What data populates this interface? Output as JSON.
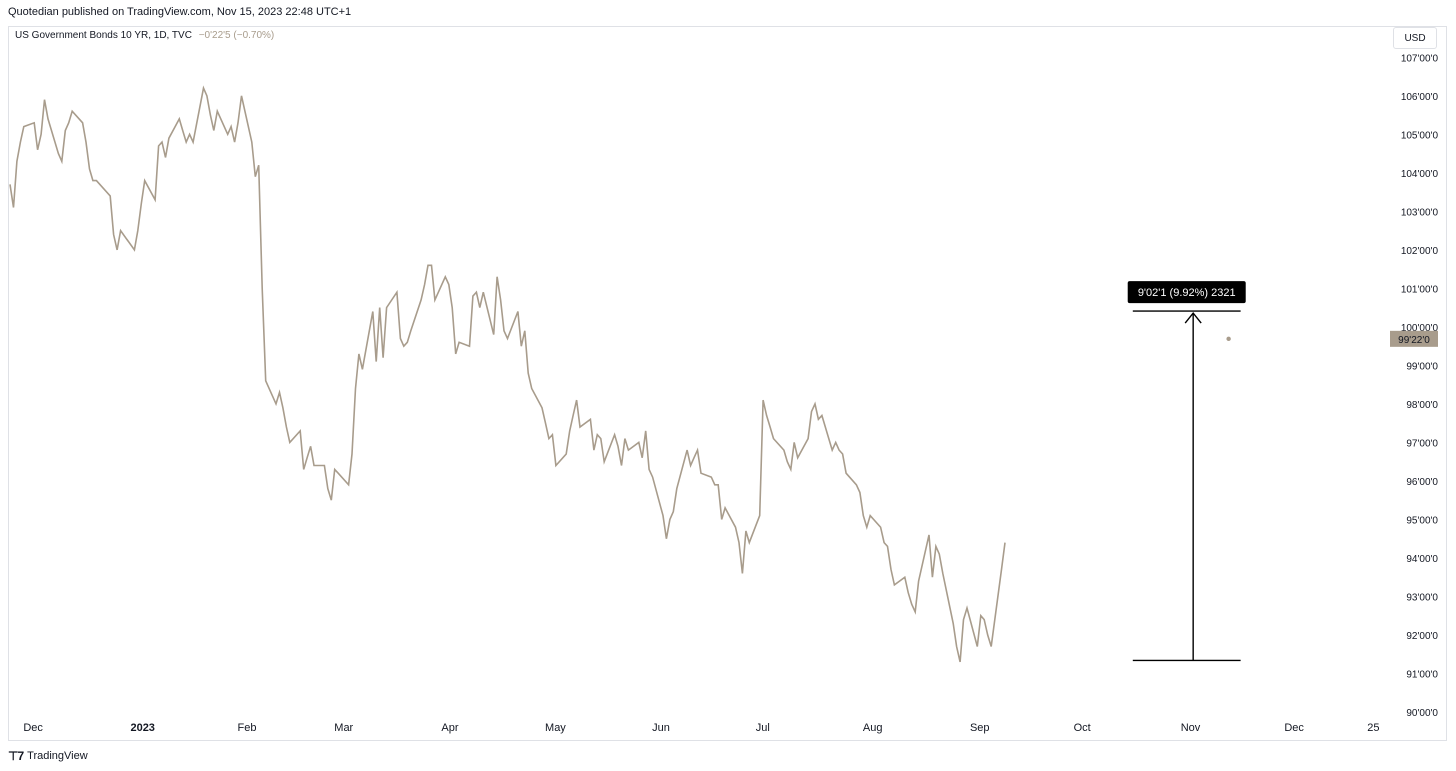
{
  "header": {
    "published": "Quotedian published on TradingView.com, Nov 15, 2023 22:48 UTC+1"
  },
  "legend": {
    "symbol": "US Government Bonds 10 YR, 1D, TVC",
    "change": "−0'22'5 (−0.70%)"
  },
  "currency": "USD",
  "footer": {
    "brand": "TradingView"
  },
  "colors": {
    "line": "#a89c8c",
    "price_label_bg": "#a89c8c",
    "annotation": "#000000"
  },
  "chart_data": {
    "type": "line",
    "y_unit": "price (points'32nds'tenth)",
    "ylim": [
      90,
      107.45
    ],
    "y_ticks": [
      "107'00'0",
      "106'00'0",
      "105'00'0",
      "104'00'0",
      "103'00'0",
      "102'00'0",
      "101'00'0",
      "100'00'0",
      "99'00'0",
      "98'00'0",
      "97'00'0",
      "96'00'0",
      "95'00'0",
      "94'00'0",
      "93'00'0",
      "92'00'0",
      "91'00'0",
      "90'00'0"
    ],
    "x_ticks": [
      "Dec",
      "2023",
      "Feb",
      "Mar",
      "Apr",
      "May",
      "Jun",
      "Jul",
      "Aug",
      "Sep",
      "Oct",
      "Nov",
      "Dec",
      "25"
    ],
    "x_tick_dates": [
      "2022-12-01",
      "2023-01-01",
      "2023-02-01",
      "2023-03-01",
      "2023-04-01",
      "2023-05-01",
      "2023-06-01",
      "2023-07-01",
      "2023-08-01",
      "2023-09-01",
      "2023-10-01",
      "2023-11-01",
      "2023-12-01",
      "2023-12-25"
    ],
    "x_range": [
      "2022-11-28",
      "2023-12-31"
    ],
    "last_price_label": "99'22'0",
    "last_price": 99.69,
    "annotation": {
      "label": "9'02'1 (9.92%) 2321",
      "from_date": "2023-10-19",
      "to_date": "2023-11-14",
      "low": 91.34,
      "high": 100.41,
      "arrow_date": "2023-11-02"
    },
    "series": [
      {
        "points": [
          [
            "2022-11-28",
            103.7
          ],
          [
            "2022-11-29",
            103.1
          ],
          [
            "2022-11-30",
            104.3
          ],
          [
            "2022-12-01",
            104.8
          ],
          [
            "2022-12-02",
            105.2
          ],
          [
            "2022-12-05",
            105.3
          ],
          [
            "2022-12-06",
            104.6
          ],
          [
            "2022-12-07",
            105.0
          ],
          [
            "2022-12-08",
            105.9
          ],
          [
            "2022-12-09",
            105.4
          ],
          [
            "2022-12-12",
            104.5
          ],
          [
            "2022-12-13",
            104.3
          ],
          [
            "2022-12-14",
            105.1
          ],
          [
            "2022-12-15",
            105.3
          ],
          [
            "2022-12-16",
            105.6
          ],
          [
            "2022-12-19",
            105.3
          ],
          [
            "2022-12-20",
            104.8
          ],
          [
            "2022-12-21",
            104.1
          ],
          [
            "2022-12-22",
            103.8
          ],
          [
            "2022-12-23",
            103.8
          ],
          [
            "2022-12-27",
            103.4
          ],
          [
            "2022-12-28",
            102.4
          ],
          [
            "2022-12-29",
            102.0
          ],
          [
            "2022-12-30",
            102.5
          ],
          [
            "2023-01-03",
            102.0
          ],
          [
            "2023-01-04",
            102.5
          ],
          [
            "2023-01-05",
            103.2
          ],
          [
            "2023-01-06",
            103.8
          ],
          [
            "2023-01-09",
            103.3
          ],
          [
            "2023-01-10",
            104.7
          ],
          [
            "2023-01-11",
            104.8
          ],
          [
            "2023-01-12",
            104.4
          ],
          [
            "2023-01-13",
            104.9
          ],
          [
            "2023-01-16",
            105.4
          ],
          [
            "2023-01-17",
            105.1
          ],
          [
            "2023-01-18",
            104.8
          ],
          [
            "2023-01-19",
            105.0
          ],
          [
            "2023-01-20",
            104.8
          ],
          [
            "2023-01-23",
            106.2
          ],
          [
            "2023-01-24",
            106.0
          ],
          [
            "2023-01-25",
            105.5
          ],
          [
            "2023-01-26",
            105.1
          ],
          [
            "2023-01-27",
            105.6
          ],
          [
            "2023-01-30",
            105.0
          ],
          [
            "2023-01-31",
            105.2
          ],
          [
            "2023-02-01",
            104.8
          ],
          [
            "2023-02-02",
            105.3
          ],
          [
            "2023-02-03",
            106.0
          ],
          [
            "2023-02-06",
            104.8
          ],
          [
            "2023-02-07",
            103.9
          ],
          [
            "2023-02-08",
            104.2
          ],
          [
            "2023-02-09",
            101.0
          ],
          [
            "2023-02-10",
            98.6
          ],
          [
            "2023-02-13",
            98.0
          ],
          [
            "2023-02-14",
            98.3
          ],
          [
            "2023-02-15",
            97.9
          ],
          [
            "2023-02-16",
            97.4
          ],
          [
            "2023-02-17",
            97.0
          ],
          [
            "2023-02-20",
            97.3
          ],
          [
            "2023-02-21",
            96.3
          ],
          [
            "2023-02-22",
            96.6
          ],
          [
            "2023-02-23",
            96.9
          ],
          [
            "2023-02-24",
            96.4
          ],
          [
            "2023-02-27",
            96.4
          ],
          [
            "2023-02-28",
            95.8
          ],
          [
            "2023-03-01",
            95.5
          ],
          [
            "2023-03-02",
            96.3
          ],
          [
            "2023-03-03",
            96.2
          ],
          [
            "2023-03-06",
            95.9
          ],
          [
            "2023-03-07",
            96.7
          ],
          [
            "2023-03-08",
            98.4
          ],
          [
            "2023-03-09",
            99.3
          ],
          [
            "2023-03-10",
            98.9
          ],
          [
            "2023-03-13",
            100.4
          ],
          [
            "2023-03-14",
            99.1
          ],
          [
            "2023-03-15",
            100.5
          ],
          [
            "2023-03-16",
            99.2
          ],
          [
            "2023-03-17",
            100.5
          ],
          [
            "2023-03-20",
            100.9
          ],
          [
            "2023-03-21",
            99.7
          ],
          [
            "2023-03-22",
            99.5
          ],
          [
            "2023-03-23",
            99.6
          ],
          [
            "2023-03-24",
            99.9
          ],
          [
            "2023-03-27",
            100.7
          ],
          [
            "2023-03-28",
            101.1
          ],
          [
            "2023-03-29",
            101.6
          ],
          [
            "2023-03-30",
            101.6
          ],
          [
            "2023-03-31",
            100.7
          ],
          [
            "2023-04-03",
            101.3
          ],
          [
            "2023-04-04",
            101.1
          ],
          [
            "2023-04-05",
            100.5
          ],
          [
            "2023-04-06",
            99.3
          ],
          [
            "2023-04-07",
            99.6
          ],
          [
            "2023-04-10",
            99.5
          ],
          [
            "2023-04-11",
            100.8
          ],
          [
            "2023-04-12",
            100.9
          ],
          [
            "2023-04-13",
            100.5
          ],
          [
            "2023-04-14",
            100.9
          ],
          [
            "2023-04-17",
            99.8
          ],
          [
            "2023-04-18",
            101.3
          ],
          [
            "2023-04-19",
            100.7
          ],
          [
            "2023-04-20",
            99.9
          ],
          [
            "2023-04-21",
            99.7
          ],
          [
            "2023-04-24",
            100.4
          ],
          [
            "2023-04-25",
            99.5
          ],
          [
            "2023-04-26",
            99.9
          ],
          [
            "2023-04-27",
            98.8
          ],
          [
            "2023-04-28",
            98.4
          ],
          [
            "2023-05-01",
            97.9
          ],
          [
            "2023-05-02",
            97.5
          ],
          [
            "2023-05-03",
            97.1
          ],
          [
            "2023-05-04",
            97.2
          ],
          [
            "2023-05-05",
            96.4
          ],
          [
            "2023-05-08",
            96.7
          ],
          [
            "2023-05-09",
            97.3
          ],
          [
            "2023-05-10",
            97.7
          ],
          [
            "2023-05-11",
            98.1
          ],
          [
            "2023-05-12",
            97.4
          ],
          [
            "2023-05-15",
            97.6
          ],
          [
            "2023-05-16",
            96.8
          ],
          [
            "2023-05-17",
            97.2
          ],
          [
            "2023-05-18",
            97.1
          ],
          [
            "2023-05-19",
            96.5
          ],
          [
            "2023-05-22",
            97.2
          ],
          [
            "2023-05-23",
            96.9
          ],
          [
            "2023-05-24",
            96.4
          ],
          [
            "2023-05-25",
            97.1
          ],
          [
            "2023-05-26",
            96.8
          ],
          [
            "2023-05-29",
            97.0
          ],
          [
            "2023-05-30",
            96.6
          ],
          [
            "2023-05-31",
            97.3
          ],
          [
            "2023-06-01",
            96.3
          ],
          [
            "2023-06-02",
            96.1
          ],
          [
            "2023-06-05",
            95.1
          ],
          [
            "2023-06-06",
            94.5
          ],
          [
            "2023-06-07",
            95.0
          ],
          [
            "2023-06-08",
            95.2
          ],
          [
            "2023-06-09",
            95.8
          ],
          [
            "2023-06-12",
            96.8
          ],
          [
            "2023-06-13",
            96.4
          ],
          [
            "2023-06-14",
            96.6
          ],
          [
            "2023-06-15",
            96.8
          ],
          [
            "2023-06-16",
            96.2
          ],
          [
            "2023-06-19",
            96.1
          ],
          [
            "2023-06-20",
            95.9
          ],
          [
            "2023-06-21",
            95.9
          ],
          [
            "2023-06-22",
            95.0
          ],
          [
            "2023-06-23",
            95.3
          ],
          [
            "2023-06-26",
            94.8
          ],
          [
            "2023-06-27",
            94.4
          ],
          [
            "2023-06-28",
            93.6
          ],
          [
            "2023-06-29",
            94.7
          ],
          [
            "2023-06-30",
            94.4
          ],
          [
            "2023-07-03",
            95.1
          ],
          [
            "2023-07-04",
            98.1
          ],
          [
            "2023-07-05",
            97.7
          ],
          [
            "2023-07-06",
            97.4
          ],
          [
            "2023-07-07",
            97.1
          ],
          [
            "2023-07-10",
            96.8
          ],
          [
            "2023-07-11",
            96.5
          ],
          [
            "2023-07-12",
            96.3
          ],
          [
            "2023-07-13",
            97.0
          ],
          [
            "2023-07-14",
            96.6
          ],
          [
            "2023-07-17",
            97.1
          ],
          [
            "2023-07-18",
            97.8
          ],
          [
            "2023-07-19",
            98.0
          ],
          [
            "2023-07-20",
            97.6
          ],
          [
            "2023-07-21",
            97.7
          ],
          [
            "2023-07-24",
            96.8
          ],
          [
            "2023-07-25",
            97.0
          ],
          [
            "2023-07-26",
            96.8
          ],
          [
            "2023-07-27",
            96.7
          ],
          [
            "2023-07-28",
            96.2
          ],
          [
            "2023-07-31",
            95.9
          ],
          [
            "2023-08-01",
            95.7
          ],
          [
            "2023-08-02",
            95.1
          ],
          [
            "2023-08-03",
            94.8
          ],
          [
            "2023-08-04",
            95.1
          ],
          [
            "2023-08-07",
            94.8
          ],
          [
            "2023-08-08",
            94.4
          ],
          [
            "2023-08-09",
            94.3
          ],
          [
            "2023-08-10",
            93.7
          ],
          [
            "2023-08-11",
            93.3
          ],
          [
            "2023-08-14",
            93.5
          ],
          [
            "2023-08-15",
            93.1
          ],
          [
            "2023-08-16",
            92.8
          ],
          [
            "2023-08-17",
            92.6
          ],
          [
            "2023-08-18",
            93.4
          ],
          [
            "2023-08-21",
            94.6
          ],
          [
            "2023-08-22",
            93.5
          ],
          [
            "2023-08-23",
            94.3
          ],
          [
            "2023-08-24",
            94.1
          ],
          [
            "2023-08-25",
            93.6
          ],
          [
            "2023-08-28",
            92.3
          ],
          [
            "2023-08-29",
            91.7
          ],
          [
            "2023-08-30",
            91.3
          ],
          [
            "2023-08-31",
            92.4
          ],
          [
            "2023-09-01",
            92.7
          ],
          [
            "2023-09-04",
            91.7
          ],
          [
            "2023-09-05",
            92.5
          ],
          [
            "2023-09-06",
            92.4
          ],
          [
            "2023-09-07",
            92.0
          ],
          [
            "2023-09-08",
            91.7
          ],
          [
            "2023-09-11",
            93.7
          ],
          [
            "2023-09-12",
            94.4
          ]
        ]
      }
    ]
  }
}
